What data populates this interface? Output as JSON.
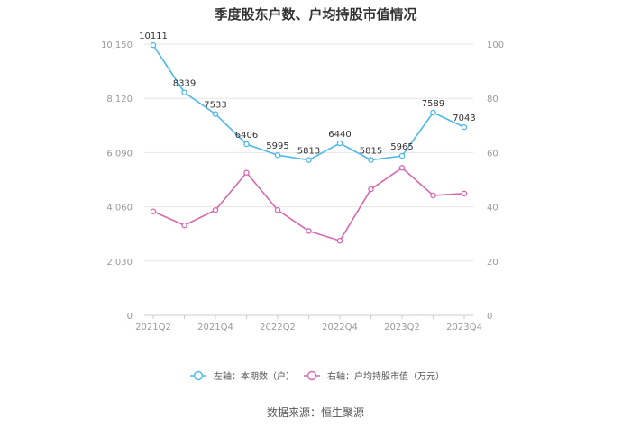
{
  "title": "季度股东户数、户均持股市值情况",
  "source": "数据来源：恒生聚源",
  "colors": {
    "left_series": "#4db8ec",
    "right_series": "#d867b0",
    "axis": "#999999",
    "grid": "#e6e6e6",
    "label": "#333333"
  },
  "chart_data": {
    "type": "line",
    "x": [
      "2021Q2",
      "2021Q3",
      "2021Q4",
      "2022Q1",
      "2022Q2",
      "2022Q3",
      "2022Q4",
      "2023Q1",
      "2023Q2",
      "2023Q3",
      "2023Q4"
    ],
    "xticks": [
      "2021Q2",
      "2021Q4",
      "2022Q2",
      "2022Q4",
      "2023Q2",
      "2023Q4"
    ],
    "left_axis": {
      "ylim": [
        0,
        10150
      ],
      "ticks": [
        "0",
        "2,030",
        "4,060",
        "6,090",
        "8,120",
        "10,150"
      ],
      "tick_values": [
        0,
        2030,
        4060,
        6090,
        8120,
        10150
      ]
    },
    "right_axis": {
      "ylim": [
        0,
        100
      ],
      "ticks": [
        "0",
        "20",
        "40",
        "60",
        "80",
        "100"
      ],
      "tick_values": [
        0,
        20,
        40,
        60,
        80,
        100
      ]
    },
    "series": [
      {
        "name": "左轴：本期数（户）",
        "axis": "left",
        "values": [
          10111,
          8339,
          7533,
          6406,
          5995,
          5813,
          6440,
          5815,
          5965,
          7589,
          7043
        ],
        "labels": [
          "10111",
          "8339",
          "7533",
          "6406",
          "5995",
          "5813",
          "6440",
          "5815",
          "5965",
          "7589",
          "7043"
        ]
      },
      {
        "name": "右轴：户均持股市值（万元）",
        "axis": "right",
        "values": [
          38.3,
          33.2,
          38.8,
          52.6,
          38.8,
          31.1,
          27.5,
          46.5,
          54.4,
          44.2,
          44.9
        ]
      }
    ],
    "grid": true,
    "legend_position": "bottom"
  }
}
